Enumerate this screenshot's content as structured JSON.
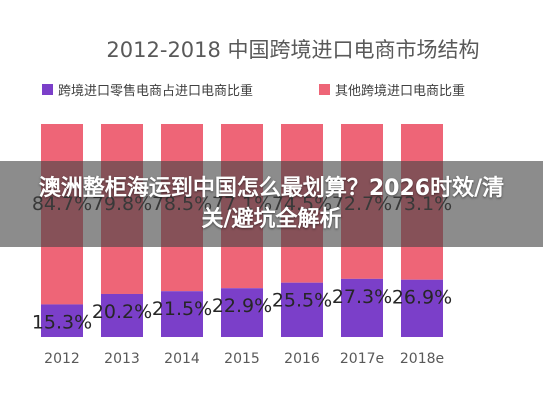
{
  "chart_data": {
    "type": "bar",
    "stacked": true,
    "title": "2012-2018 中国跨境进口电商市场结构",
    "categories": [
      "2012",
      "2013",
      "2014",
      "2015",
      "2016",
      "2017e",
      "2018e"
    ],
    "series": [
      {
        "name": "跨境进口零售电商占进口电商比重",
        "color": "#7b3fc9",
        "values": [
          15.3,
          20.2,
          21.5,
          22.9,
          25.5,
          27.3,
          26.9
        ]
      },
      {
        "name": "其他跨境进口电商比重",
        "color": "#ee6577",
        "values": [
          84.7,
          79.8,
          78.5,
          77.1,
          74.5,
          72.7,
          73.1
        ]
      }
    ],
    "ylim": [
      0,
      100
    ],
    "legend_position": "top-left",
    "grid": false
  },
  "overlay": {
    "headline": "澳洲整柜海运到中国怎么最划算？2026时效/清关/避坑全解析"
  }
}
